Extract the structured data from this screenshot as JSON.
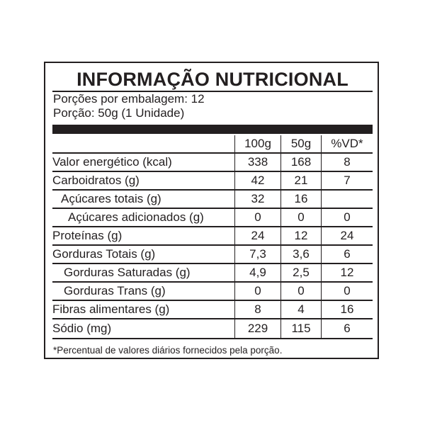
{
  "title": "INFORMAÇÃO NUTRICIONAL",
  "servings_per_package": "Porções por embalagem: 12",
  "serving_size": "Porção:  50g (1 Unidade)",
  "columns": [
    "100g",
    "50g",
    "%VD*"
  ],
  "rows": [
    {
      "label": "Valor energético (kcal)",
      "indent": 0,
      "v100": "338",
      "v50": "168",
      "vd": "8"
    },
    {
      "label": "Carboidratos (g)",
      "indent": 0,
      "v100": "42",
      "v50": "21",
      "vd": "7"
    },
    {
      "label": "Açúcares totais (g)",
      "indent": 1,
      "v100": "32",
      "v50": "16",
      "vd": ""
    },
    {
      "label": "Açúcares adicionados (g)",
      "indent": 2,
      "v100": "0",
      "v50": "0",
      "vd": "0"
    },
    {
      "label": "Proteínas (g)",
      "indent": 0,
      "v100": "24",
      "v50": "12",
      "vd": "24"
    },
    {
      "label": "Gorduras Totais (g)",
      "indent": 0,
      "v100": "7,3",
      "v50": "3,6",
      "vd": "6"
    },
    {
      "label": "Gorduras Saturadas (g)",
      "indent": 3,
      "v100": "4,9",
      "v50": "2,5",
      "vd": "12"
    },
    {
      "label": "Gorduras Trans (g)",
      "indent": 3,
      "v100": "0",
      "v50": "0",
      "vd": "0"
    },
    {
      "label": "Fibras alimentares (g)",
      "indent": 0,
      "v100": "8",
      "v50": "4",
      "vd": "16"
    },
    {
      "label": "Sódio (mg)",
      "indent": 0,
      "v100": "229",
      "v50": "115",
      "vd": "6"
    }
  ],
  "footnote": "*Percentual de valores diários fornecidos pela porção."
}
